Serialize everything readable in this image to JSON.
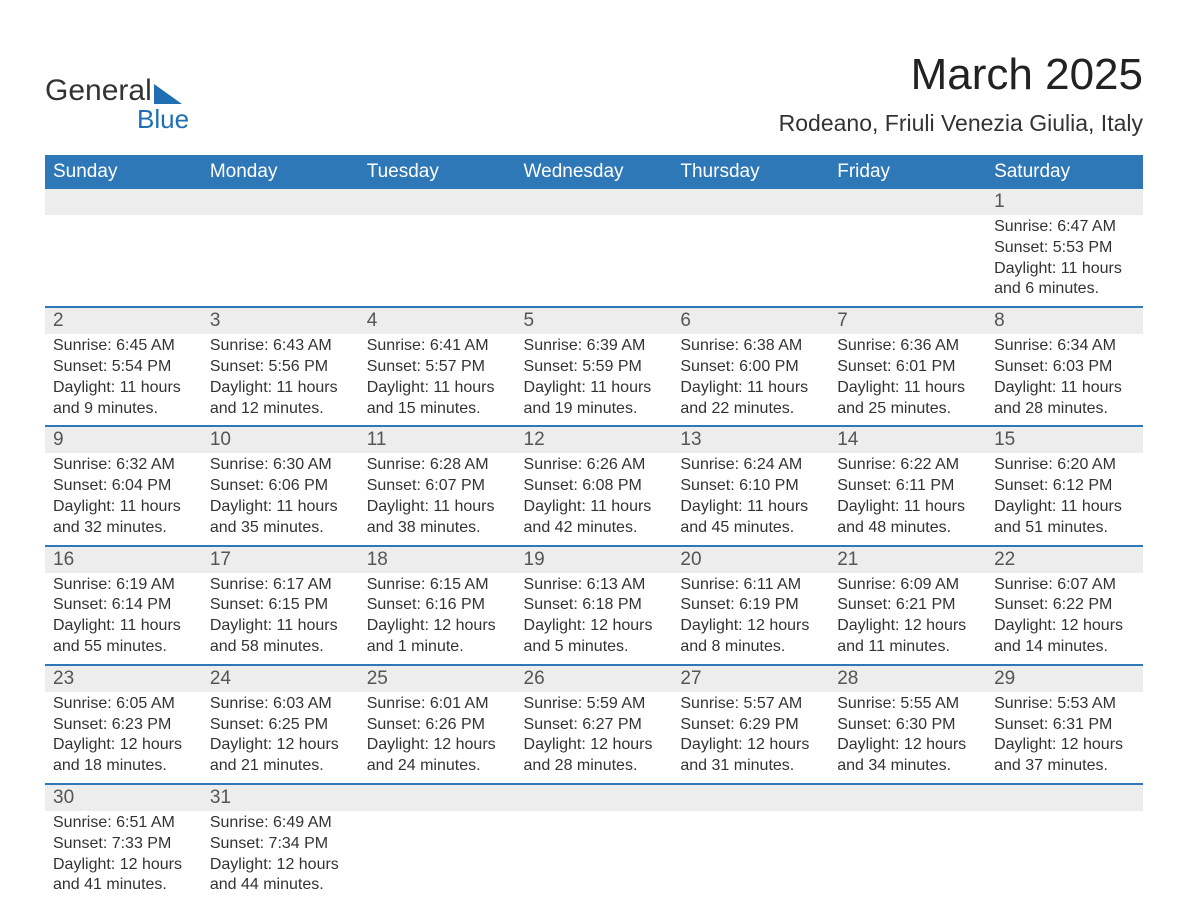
{
  "logo": {
    "text1": "General",
    "text2": "Blue",
    "accent_color": "#1f6fb2"
  },
  "title": "March 2025",
  "location": "Rodeano, Friuli Venezia Giulia, Italy",
  "colors": {
    "header_bg": "#2e78b7",
    "header_fg": "#ffffff",
    "row_divider": "#2e78b7",
    "daynum_bg": "#ededed",
    "text": "#333333"
  },
  "weekdays": [
    "Sunday",
    "Monday",
    "Tuesday",
    "Wednesday",
    "Thursday",
    "Friday",
    "Saturday"
  ],
  "weeks": [
    [
      null,
      null,
      null,
      null,
      null,
      null,
      {
        "day": 1,
        "sunrise": "6:47 AM",
        "sunset": "5:53 PM",
        "daylight": "11 hours and 6 minutes."
      }
    ],
    [
      {
        "day": 2,
        "sunrise": "6:45 AM",
        "sunset": "5:54 PM",
        "daylight": "11 hours and 9 minutes."
      },
      {
        "day": 3,
        "sunrise": "6:43 AM",
        "sunset": "5:56 PM",
        "daylight": "11 hours and 12 minutes."
      },
      {
        "day": 4,
        "sunrise": "6:41 AM",
        "sunset": "5:57 PM",
        "daylight": "11 hours and 15 minutes."
      },
      {
        "day": 5,
        "sunrise": "6:39 AM",
        "sunset": "5:59 PM",
        "daylight": "11 hours and 19 minutes."
      },
      {
        "day": 6,
        "sunrise": "6:38 AM",
        "sunset": "6:00 PM",
        "daylight": "11 hours and 22 minutes."
      },
      {
        "day": 7,
        "sunrise": "6:36 AM",
        "sunset": "6:01 PM",
        "daylight": "11 hours and 25 minutes."
      },
      {
        "day": 8,
        "sunrise": "6:34 AM",
        "sunset": "6:03 PM",
        "daylight": "11 hours and 28 minutes."
      }
    ],
    [
      {
        "day": 9,
        "sunrise": "6:32 AM",
        "sunset": "6:04 PM",
        "daylight": "11 hours and 32 minutes."
      },
      {
        "day": 10,
        "sunrise": "6:30 AM",
        "sunset": "6:06 PM",
        "daylight": "11 hours and 35 minutes."
      },
      {
        "day": 11,
        "sunrise": "6:28 AM",
        "sunset": "6:07 PM",
        "daylight": "11 hours and 38 minutes."
      },
      {
        "day": 12,
        "sunrise": "6:26 AM",
        "sunset": "6:08 PM",
        "daylight": "11 hours and 42 minutes."
      },
      {
        "day": 13,
        "sunrise": "6:24 AM",
        "sunset": "6:10 PM",
        "daylight": "11 hours and 45 minutes."
      },
      {
        "day": 14,
        "sunrise": "6:22 AM",
        "sunset": "6:11 PM",
        "daylight": "11 hours and 48 minutes."
      },
      {
        "day": 15,
        "sunrise": "6:20 AM",
        "sunset": "6:12 PM",
        "daylight": "11 hours and 51 minutes."
      }
    ],
    [
      {
        "day": 16,
        "sunrise": "6:19 AM",
        "sunset": "6:14 PM",
        "daylight": "11 hours and 55 minutes."
      },
      {
        "day": 17,
        "sunrise": "6:17 AM",
        "sunset": "6:15 PM",
        "daylight": "11 hours and 58 minutes."
      },
      {
        "day": 18,
        "sunrise": "6:15 AM",
        "sunset": "6:16 PM",
        "daylight": "12 hours and 1 minute."
      },
      {
        "day": 19,
        "sunrise": "6:13 AM",
        "sunset": "6:18 PM",
        "daylight": "12 hours and 5 minutes."
      },
      {
        "day": 20,
        "sunrise": "6:11 AM",
        "sunset": "6:19 PM",
        "daylight": "12 hours and 8 minutes."
      },
      {
        "day": 21,
        "sunrise": "6:09 AM",
        "sunset": "6:21 PM",
        "daylight": "12 hours and 11 minutes."
      },
      {
        "day": 22,
        "sunrise": "6:07 AM",
        "sunset": "6:22 PM",
        "daylight": "12 hours and 14 minutes."
      }
    ],
    [
      {
        "day": 23,
        "sunrise": "6:05 AM",
        "sunset": "6:23 PM",
        "daylight": "12 hours and 18 minutes."
      },
      {
        "day": 24,
        "sunrise": "6:03 AM",
        "sunset": "6:25 PM",
        "daylight": "12 hours and 21 minutes."
      },
      {
        "day": 25,
        "sunrise": "6:01 AM",
        "sunset": "6:26 PM",
        "daylight": "12 hours and 24 minutes."
      },
      {
        "day": 26,
        "sunrise": "5:59 AM",
        "sunset": "6:27 PM",
        "daylight": "12 hours and 28 minutes."
      },
      {
        "day": 27,
        "sunrise": "5:57 AM",
        "sunset": "6:29 PM",
        "daylight": "12 hours and 31 minutes."
      },
      {
        "day": 28,
        "sunrise": "5:55 AM",
        "sunset": "6:30 PM",
        "daylight": "12 hours and 34 minutes."
      },
      {
        "day": 29,
        "sunrise": "5:53 AM",
        "sunset": "6:31 PM",
        "daylight": "12 hours and 37 minutes."
      }
    ],
    [
      {
        "day": 30,
        "sunrise": "6:51 AM",
        "sunset": "7:33 PM",
        "daylight": "12 hours and 41 minutes."
      },
      {
        "day": 31,
        "sunrise": "6:49 AM",
        "sunset": "7:34 PM",
        "daylight": "12 hours and 44 minutes."
      },
      null,
      null,
      null,
      null,
      null
    ]
  ],
  "labels": {
    "sunrise": "Sunrise: ",
    "sunset": "Sunset: ",
    "daylight": "Daylight: "
  }
}
